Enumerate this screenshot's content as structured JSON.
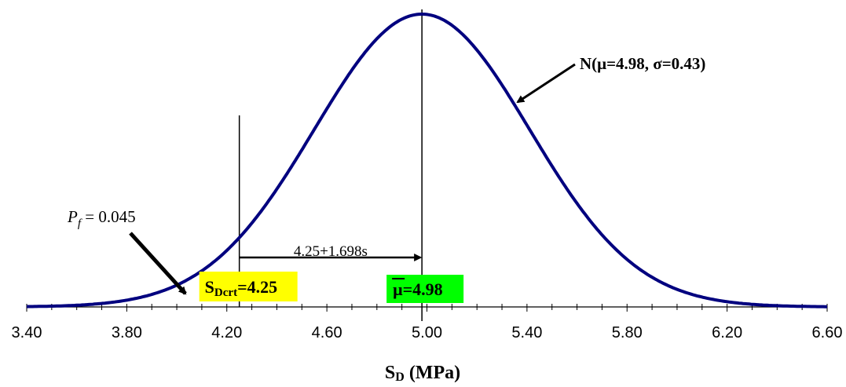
{
  "chart_data": {
    "type": "line",
    "title": "",
    "xlabel": "SD (MPa)",
    "xlabel_main": "S",
    "xlabel_sub": "D",
    "xlabel_unit": " (MPa)",
    "ylabel": "",
    "xlim": [
      3.4,
      6.6
    ],
    "x_ticks": [
      "3.40",
      "3.80",
      "4.20",
      "4.60",
      "5.00",
      "5.40",
      "5.80",
      "6.20",
      "6.60"
    ],
    "minor_tick_step": 0.1,
    "series": [
      {
        "name": "N(μ=4.98, σ=0.43)",
        "distribution": "normal",
        "mean": 4.98,
        "std": 0.43,
        "color": "#00007f"
      }
    ],
    "annotations": {
      "distribution_label": "N(μ=4.98, σ=0.43)",
      "pf_label_symbol": "P",
      "pf_label_sub": "f",
      "pf_label_value": " = 0.045",
      "distance_label": "4.25+1.698s",
      "critical_box": {
        "main": "S",
        "sub": "Dcrt",
        "value": "=4.25",
        "x": 4.25,
        "color": "#ffff00"
      },
      "mean_box": {
        "symbol": "μ",
        "value": "=4.98",
        "x": 4.98,
        "color": "#00ff00"
      },
      "critical_line_x": 4.25,
      "mean_line_x": 4.98
    }
  }
}
